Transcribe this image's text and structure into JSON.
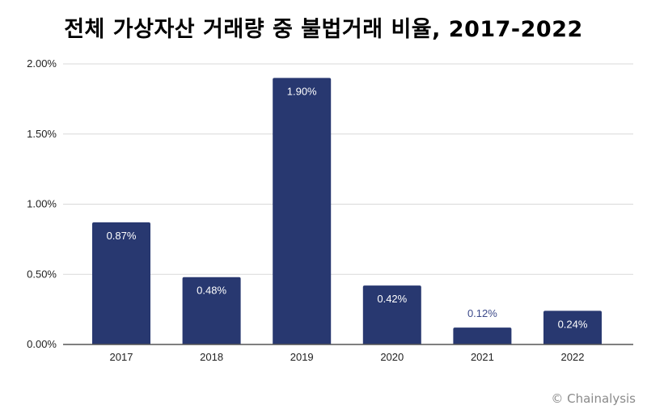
{
  "chart_data": {
    "type": "bar",
    "title": "전체 가상자산 거래량 중 불법거래 비율, 2017-2022",
    "categories": [
      "2017",
      "2018",
      "2019",
      "2020",
      "2021",
      "2022"
    ],
    "values": [
      0.87,
      0.48,
      1.9,
      0.42,
      0.12,
      0.24
    ],
    "data_labels": [
      "0.87%",
      "0.48%",
      "1.90%",
      "0.42%",
      "0.12%",
      "0.24%"
    ],
    "xlabel": "",
    "ylabel": "",
    "ylim": [
      0,
      2
    ],
    "yticks": [
      "0.00%",
      "0.50%",
      "1.00%",
      "1.50%",
      "2.00%"
    ],
    "ytick_values": [
      0,
      0.5,
      1,
      1.5,
      2
    ],
    "grid": true,
    "legend": "none",
    "colors": {
      "bar": "#283870",
      "label_inside": "#ffffff",
      "label_outside": "#3c4a8a",
      "grid": "#d9d9d9",
      "axis": "#555555"
    }
  },
  "watermark": "© Chainalysis"
}
